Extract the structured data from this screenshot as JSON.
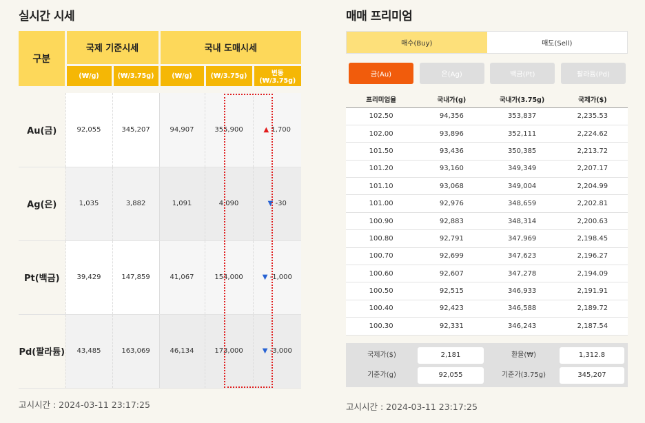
{
  "realtime": {
    "title": "실시간 시세",
    "header": {
      "gubun": "구분",
      "intl_group": "국제 기준시세",
      "dom_group": "국내 도매시세",
      "cols": [
        "(₩/g)",
        "(₩/3.75g)",
        "(₩/g)",
        "(₩/3.75g)",
        "변동(₩/3.75g)"
      ]
    },
    "rows": [
      {
        "metal": "Au(금)",
        "intl_g": "92,055",
        "intl_375": "345,207",
        "dom_g": "94,907",
        "dom_375": "355,900",
        "change_arrow": "▲",
        "change": "1,700",
        "direction": "up"
      },
      {
        "metal": "Ag(은)",
        "intl_g": "1,035",
        "intl_375": "3,882",
        "dom_g": "1,091",
        "dom_375": "4,090",
        "change_arrow": "▼",
        "change": "-30",
        "direction": "down"
      },
      {
        "metal": "Pt(백금)",
        "intl_g": "39,429",
        "intl_375": "147,859",
        "dom_g": "41,067",
        "dom_375": "154,000",
        "change_arrow": "▼",
        "change": "-1,000",
        "direction": "down"
      },
      {
        "metal": "Pd(팔라듐)",
        "intl_g": "43,485",
        "intl_375": "163,069",
        "dom_g": "46,134",
        "dom_375": "173,000",
        "change_arrow": "▼",
        "change": "-3,000",
        "direction": "down"
      }
    ],
    "notice": "고시시간 : 2024-03-11 23:17:25"
  },
  "premium": {
    "title": "매매 프리미엄",
    "tabs": [
      {
        "label": "매수(Buy)",
        "active": true
      },
      {
        "label": "매도(Sell)",
        "active": false
      }
    ],
    "metals": [
      {
        "label": "금(Au)",
        "active": true
      },
      {
        "label": "은(Ag)",
        "active": false
      },
      {
        "label": "백금(Pt)",
        "active": false
      },
      {
        "label": "팔라듐(Pd)",
        "active": false
      }
    ],
    "columns": [
      "프리미엄율",
      "국내가(g)",
      "국내가(3.75g)",
      "국제가($)"
    ],
    "rows": [
      [
        "102.50",
        "94,356",
        "353,837",
        "2,235.53"
      ],
      [
        "102.00",
        "93,896",
        "352,111",
        "2,224.62"
      ],
      [
        "101.50",
        "93,436",
        "350,385",
        "2,213.72"
      ],
      [
        "101.20",
        "93,160",
        "349,349",
        "2,207.17"
      ],
      [
        "101.10",
        "93,068",
        "349,004",
        "2,204.99"
      ],
      [
        "101.00",
        "92,976",
        "348,659",
        "2,202.81"
      ],
      [
        "100.90",
        "92,883",
        "348,314",
        "2,200.63"
      ],
      [
        "100.80",
        "92,791",
        "347,969",
        "2,198.45"
      ],
      [
        "100.70",
        "92,699",
        "347,623",
        "2,196.27"
      ],
      [
        "100.60",
        "92,607",
        "347,278",
        "2,194.09"
      ],
      [
        "100.50",
        "92,515",
        "346,933",
        "2,191.91"
      ],
      [
        "100.40",
        "92,423",
        "346,588",
        "2,189.72"
      ],
      [
        "100.30",
        "92,331",
        "346,243",
        "2,187.54"
      ]
    ],
    "info": {
      "intl_price_label": "국제가($)",
      "intl_price_value": "2,181",
      "fx_label": "환율(₩)",
      "fx_value": "1,312.8",
      "base_g_label": "기준가(g)",
      "base_g_value": "92,055",
      "base_375_label": "기준가(3.75g)",
      "base_375_value": "345,207"
    },
    "notice": "고시시간 : 2024-03-11 23:17:25"
  },
  "colors": {
    "header_light": "#fdd85a",
    "header_dark": "#f5b705",
    "active_metal": "#f15c0c",
    "up": "#e21b1b",
    "down": "#2762d3",
    "highlight_border": "#e02020"
  }
}
